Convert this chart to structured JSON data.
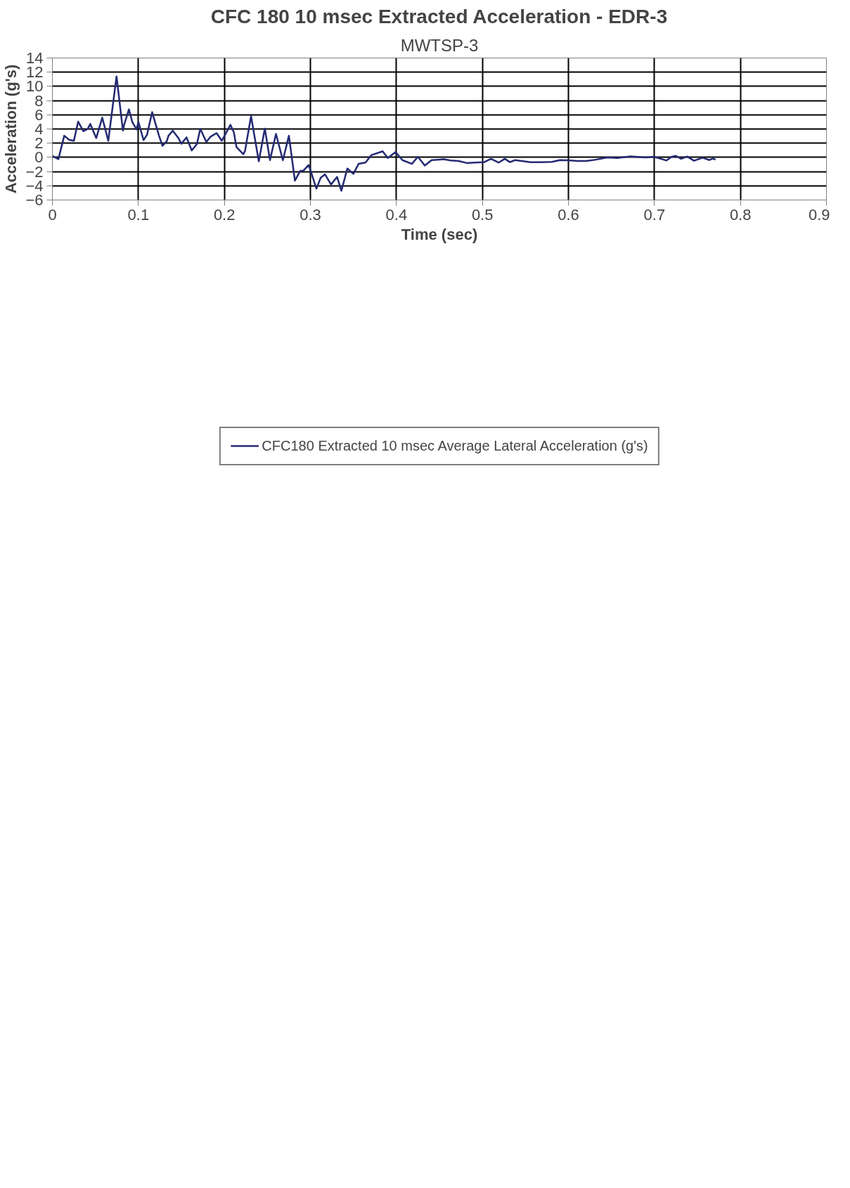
{
  "chart_data": {
    "type": "line",
    "title": "CFC 180 10 msec Extracted Acceleration - EDR-3",
    "subtitle": "MWTSP-3",
    "xlabel": "Time (sec)",
    "ylabel": "Acceleration (g's)",
    "xlim": [
      0,
      0.9
    ],
    "ylim": [
      -6,
      14
    ],
    "xticks": [
      0,
      0.1,
      0.2,
      0.3,
      0.4,
      0.5,
      0.6,
      0.7,
      0.8,
      0.9
    ],
    "yticks": [
      -6,
      -4,
      -2,
      0,
      2,
      4,
      6,
      8,
      10,
      12,
      14
    ],
    "grid": true,
    "legend": "bottom",
    "series": [
      {
        "name": "CFC180 Extracted 10 msec Average Lateral Acceleration (g's)",
        "color": "#232a72",
        "x": [
          0,
          0.007,
          0.0138,
          0.0196,
          0.025,
          0.03,
          0.036,
          0.041,
          0.044,
          0.051,
          0.058,
          0.065,
          0.0746,
          0.082,
          0.0837,
          0.089,
          0.093,
          0.098,
          0.1,
          0.106,
          0.11,
          0.116,
          0.124,
          0.128,
          0.133,
          0.135,
          0.14,
          0.146,
          0.15,
          0.156,
          0.162,
          0.168,
          0.172,
          0.179,
          0.184,
          0.191,
          0.197,
          0.207,
          0.211,
          0.214,
          0.222,
          0.224,
          0.231,
          0.24,
          0.247,
          0.253,
          0.26,
          0.268,
          0.275,
          0.282,
          0.288,
          0.292,
          0.298,
          0.307,
          0.312,
          0.317,
          0.324,
          0.331,
          0.336,
          0.343,
          0.35,
          0.356,
          0.364,
          0.371,
          0.384,
          0.39,
          0.399,
          0.407,
          0.418,
          0.425,
          0.433,
          0.441,
          0.448,
          0.455,
          0.463,
          0.472,
          0.482,
          0.491,
          0.502,
          0.51,
          0.519,
          0.526,
          0.532,
          0.538,
          0.556,
          0.568,
          0.581,
          0.59,
          0.6,
          0.61,
          0.621,
          0.632,
          0.645,
          0.657,
          0.665,
          0.672,
          0.69,
          0.699,
          0.706,
          0.714,
          0.72,
          0.725,
          0.731,
          0.738,
          0.746,
          0.756,
          0.764,
          0.768,
          0.771
        ],
        "values": [
          0.2,
          -0.24,
          3.05,
          2.46,
          2.34,
          5.04,
          3.7,
          4.0,
          4.71,
          2.72,
          5.6,
          2.34,
          11.4,
          3.79,
          4.71,
          6.76,
          4.95,
          3.94,
          5.0,
          2.44,
          3.17,
          6.37,
          3.05,
          1.63,
          2.28,
          3.05,
          3.76,
          2.82,
          1.93,
          2.82,
          0.98,
          1.87,
          4.02,
          2.17,
          2.93,
          3.41,
          2.34,
          4.59,
          3.53,
          1.46,
          0.45,
          0.92,
          5.8,
          -0.56,
          4.06,
          -0.38,
          3.31,
          -0.41,
          3.05,
          -3.28,
          -1.92,
          -1.86,
          -1.07,
          -4.4,
          -2.86,
          -2.39,
          -3.81,
          -2.75,
          -4.7,
          -1.56,
          -2.33,
          -0.91,
          -0.73,
          0.33,
          0.86,
          -0.08,
          0.75,
          -0.38,
          -0.91,
          0.09,
          -1.15,
          -0.38,
          -0.32,
          -0.26,
          -0.44,
          -0.5,
          -0.79,
          -0.73,
          -0.67,
          -0.2,
          -0.73,
          -0.2,
          -0.67,
          -0.38,
          -0.67,
          -0.67,
          -0.62,
          -0.38,
          -0.4,
          -0.5,
          -0.5,
          -0.32,
          -0.02,
          -0.08,
          0.04,
          0.15,
          0.0,
          0.09,
          -0.14,
          -0.44,
          0.09,
          0.21,
          -0.2,
          0.12,
          -0.47,
          -0.05,
          -0.38,
          -0.14,
          -0.32
        ]
      }
    ]
  }
}
